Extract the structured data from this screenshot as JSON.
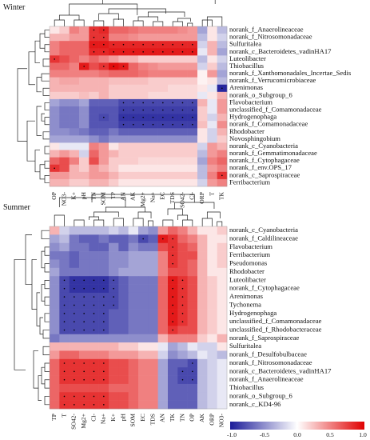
{
  "chart_data": [
    {
      "type": "heatmap",
      "title": "Winter",
      "columns": [
        "OP",
        "NO3-",
        "K+",
        "pH",
        "TN",
        "SOM",
        "TP",
        "AN",
        "AK",
        "Mg2+",
        "Na+",
        "EC",
        "TDS",
        "SO42-",
        "Cl-",
        "ORP",
        "T",
        "TK"
      ],
      "rows": [
        "norank_f_Anaerolineaceae",
        "norank_f_Nitrosomonadaceae",
        "Sulfuritalea",
        "norank_c_Bacteroidetes_vadinHA17",
        "Luteolibacter",
        "Thiobacillus",
        "norank_f_Xanthomonadales_Incertae_Sedis",
        "norank_f_Verrucomicrobiaceae",
        "Arenimonas",
        "norank_o_Subgroup_6",
        "Flavobacterium",
        "unclassified_f_Comamonadaceae",
        "Hydrogenophaga",
        "norank_f_Comamonadaceae",
        "Rhodobacter",
        "Novosphingobium",
        "norank_c_Cyanobacteria",
        "norank_f_Gemmatimonadaceae",
        "norank_f_Cytophagaceae",
        "norank_f_env.OPS_17",
        "norank_c_Saprospiraceae",
        "Ferribacterium"
      ],
      "values": [
        [
          0.1,
          0.2,
          0.5,
          0.4,
          0.8,
          0.85,
          0.6,
          0.6,
          0.55,
          0.5,
          0.5,
          0.5,
          0.5,
          0.45,
          0.4,
          -0.4,
          0.1,
          -0.3
        ],
        [
          0.3,
          0.3,
          0.4,
          0.4,
          0.8,
          0.8,
          0.5,
          0.5,
          0.45,
          0.4,
          0.4,
          0.4,
          0.4,
          0.4,
          0.4,
          -0.3,
          0.1,
          -0.2
        ],
        [
          0.5,
          0.6,
          0.6,
          0.6,
          0.9,
          0.9,
          0.85,
          0.85,
          0.85,
          0.85,
          0.85,
          0.85,
          0.85,
          0.85,
          0.85,
          -0.2,
          0.3,
          -0.3
        ],
        [
          0.5,
          0.6,
          0.6,
          0.6,
          0.85,
          0.85,
          0.9,
          0.9,
          0.9,
          0.9,
          0.9,
          0.9,
          0.9,
          0.9,
          0.9,
          -0.1,
          0.3,
          -0.4
        ],
        [
          0.8,
          0.7,
          0.6,
          0.5,
          0.6,
          0.5,
          0.4,
          0.3,
          0.3,
          0.2,
          0.2,
          0.2,
          0.2,
          0.2,
          0.2,
          -0.3,
          0.1,
          -0.2
        ],
        [
          0.6,
          0.6,
          0.5,
          0.9,
          0.7,
          0.8,
          0.95,
          0.9,
          0.6,
          0.5,
          0.45,
          0.4,
          0.4,
          0.4,
          0.4,
          -0.2,
          0.2,
          -0.3
        ],
        [
          0.5,
          0.5,
          0.5,
          0.5,
          0.5,
          0.55,
          0.6,
          0.6,
          0.6,
          0.55,
          0.5,
          0.5,
          0.5,
          0.5,
          0.5,
          0.05,
          0.4,
          -0.4
        ],
        [
          0.3,
          0.35,
          0.35,
          0.3,
          0.3,
          0.3,
          0.25,
          0.25,
          0.25,
          0.25,
          0.2,
          0.2,
          0.2,
          0.2,
          0.2,
          0.05,
          0.1,
          -0.3
        ],
        [
          0.3,
          0.3,
          0.3,
          0.3,
          0.3,
          0.3,
          0.2,
          0.2,
          0.2,
          0.2,
          0.2,
          0.2,
          0.15,
          0.15,
          0.15,
          0.1,
          -0.1,
          -0.95
        ],
        [
          0.2,
          0.2,
          0.2,
          0.25,
          0.2,
          0.3,
          0.2,
          0.2,
          0.2,
          0.2,
          0.15,
          0.15,
          0.15,
          0.15,
          0.15,
          -0.1,
          0.1,
          0.3
        ],
        [
          -0.4,
          -0.5,
          -0.5,
          -0.4,
          -0.7,
          -0.7,
          -0.7,
          -0.8,
          -0.8,
          -0.8,
          -0.8,
          -0.8,
          -0.8,
          -0.8,
          -0.8,
          0.3,
          -0.1,
          0.4
        ],
        [
          -0.5,
          -0.6,
          -0.6,
          -0.5,
          -0.75,
          -0.75,
          -0.75,
          -0.85,
          -0.85,
          -0.85,
          -0.85,
          -0.85,
          -0.85,
          -0.85,
          -0.85,
          0.2,
          -0.1,
          0.4
        ],
        [
          -0.5,
          -0.6,
          -0.6,
          -0.5,
          -0.75,
          -0.8,
          -0.75,
          -0.9,
          -0.9,
          -0.9,
          -0.9,
          -0.9,
          -0.9,
          -0.9,
          -0.9,
          0.2,
          -0.2,
          0.3
        ],
        [
          -0.5,
          -0.6,
          -0.6,
          -0.5,
          -0.75,
          -0.75,
          -0.75,
          -0.85,
          -0.85,
          -0.85,
          -0.85,
          -0.85,
          -0.85,
          -0.85,
          -0.85,
          0.25,
          -0.1,
          0.45
        ],
        [
          -0.5,
          -0.5,
          -0.55,
          -0.6,
          -0.7,
          -0.7,
          -0.6,
          -0.7,
          -0.7,
          -0.7,
          -0.7,
          -0.7,
          -0.7,
          -0.7,
          -0.7,
          0.1,
          -0.2,
          0.3
        ],
        [
          -0.4,
          -0.4,
          -0.4,
          -0.4,
          -0.5,
          -0.6,
          -0.5,
          -0.5,
          -0.5,
          -0.5,
          -0.5,
          -0.5,
          -0.5,
          -0.5,
          -0.5,
          0.1,
          -0.2,
          0.2
        ],
        [
          0.1,
          -0.1,
          -0.1,
          -0.1,
          0.5,
          0.4,
          0.1,
          0.2,
          0.2,
          0.2,
          0.2,
          0.2,
          0.2,
          0.2,
          0.2,
          -0.2,
          0.4,
          0.3
        ],
        [
          0.3,
          0.4,
          0.3,
          -0.2,
          0.6,
          0.4,
          0.3,
          0.2,
          0.2,
          0.2,
          0.2,
          0.2,
          0.2,
          0.2,
          0.2,
          -0.3,
          0.4,
          0.5
        ],
        [
          0.6,
          0.7,
          0.5,
          0.2,
          0.7,
          0.4,
          0.2,
          0.2,
          0.2,
          0.15,
          0.15,
          0.15,
          0.15,
          0.15,
          0.15,
          -0.4,
          0.5,
          0.6
        ],
        [
          0.8,
          0.7,
          0.3,
          0.2,
          0.4,
          0.3,
          0.2,
          0.1,
          0.1,
          0.1,
          0.1,
          0.1,
          0.1,
          0.1,
          0.1,
          -0.3,
          0.4,
          0.5
        ],
        [
          0.4,
          0.4,
          0.3,
          0.3,
          0.4,
          0.4,
          0.3,
          0.2,
          0.2,
          0.2,
          0.2,
          0.2,
          0.2,
          0.2,
          0.2,
          -0.3,
          0.5,
          0.8
        ],
        [
          0.3,
          0.3,
          0.2,
          0.2,
          0.3,
          0.3,
          0.2,
          0.1,
          0.1,
          0.1,
          0.1,
          0.1,
          0.1,
          0.1,
          0.1,
          -0.2,
          0.4,
          0.5
        ]
      ]
    },
    {
      "type": "heatmap",
      "title": "Summer",
      "columns": [
        "TP",
        "T",
        "SO42-",
        "Mg2+",
        "Cl-",
        "Na+",
        "K+",
        "pH",
        "SOM",
        "EC",
        "TDS",
        "AN",
        "TK",
        "TN",
        "OP",
        "AK",
        "ORP",
        "NO3-"
      ],
      "rows": [
        "norank_c_Cyanobacteria",
        "norank_f_Caldilineaceae",
        "Flavobacterium",
        "Ferribacterium",
        "Pseudomonas",
        "Rhodobacter",
        "Luteolibacter",
        "norank_f_Cytophagaceae",
        "Arenimonas",
        "Tychonema",
        "Hydrogenophaga",
        "unclassified_f_Comamonadaceae",
        "unclassified_f_Rhodobacteraceae",
        "norank_f_Saprospiraceae",
        "Sulfuritalea",
        "norank_f_Desulfobulbaceae",
        "norank_f_Nitrosomonadaceae",
        "norank_c_Bacteroidetes_vadinHA17",
        "norank_f_Anaerolineaceae",
        "Thiobacillus",
        "norank_o_Subgroup_6",
        "norank_c_KD4-96"
      ],
      "values": [
        [
          0.3,
          -0.2,
          -0.3,
          -0.3,
          -0.3,
          -0.3,
          -0.2,
          -0.3,
          -0.1,
          -0.4,
          -0.5,
          0.4,
          0.6,
          0.5,
          0.3,
          0.1,
          0.1,
          0.2
        ],
        [
          -0.4,
          -0.3,
          -0.6,
          -0.7,
          -0.7,
          -0.6,
          -0.7,
          -0.7,
          -0.6,
          -0.8,
          -0.7,
          0.9,
          0.8,
          0.6,
          0.5,
          0.3,
          0.1,
          0.1
        ],
        [
          -0.5,
          -0.4,
          -0.6,
          -0.6,
          -0.7,
          -0.7,
          -0.5,
          -0.7,
          -0.5,
          -0.6,
          -0.6,
          0.7,
          0.8,
          0.7,
          0.6,
          0.3,
          0.1,
          0.2
        ],
        [
          -0.6,
          -0.6,
          -0.7,
          -0.6,
          -0.6,
          -0.6,
          -0.5,
          -0.5,
          -0.4,
          -0.4,
          -0.4,
          0.5,
          0.8,
          0.7,
          0.7,
          0.3,
          0.1,
          0.2
        ],
        [
          -0.5,
          -0.6,
          -0.7,
          -0.6,
          -0.6,
          -0.6,
          -0.5,
          -0.5,
          -0.4,
          -0.4,
          -0.4,
          0.5,
          0.8,
          0.7,
          0.6,
          0.3,
          0.1,
          0.2
        ],
        [
          -0.4,
          -0.6,
          -0.6,
          -0.6,
          -0.6,
          -0.6,
          -0.5,
          -0.4,
          -0.4,
          -0.4,
          -0.4,
          0.5,
          0.7,
          0.7,
          0.6,
          0.3,
          0.1,
          0.1
        ],
        [
          -0.5,
          -0.8,
          -0.9,
          -0.9,
          -0.9,
          -0.9,
          -0.8,
          -0.7,
          -0.6,
          -0.6,
          -0.6,
          0.6,
          0.9,
          0.8,
          0.7,
          0.3,
          0.2,
          0.1
        ],
        [
          -0.5,
          -0.8,
          -0.9,
          -0.9,
          -0.9,
          -0.9,
          -0.8,
          -0.7,
          -0.6,
          -0.6,
          -0.6,
          0.6,
          0.9,
          0.8,
          0.7,
          0.3,
          0.2,
          0.1
        ],
        [
          -0.5,
          -0.8,
          -0.8,
          -0.8,
          -0.8,
          -0.8,
          -0.8,
          -0.7,
          -0.6,
          -0.6,
          -0.6,
          0.6,
          0.9,
          0.8,
          0.7,
          0.3,
          0.2,
          0.1
        ],
        [
          -0.5,
          -0.8,
          -0.8,
          -0.8,
          -0.8,
          -0.8,
          -0.8,
          -0.7,
          -0.6,
          -0.6,
          -0.6,
          0.6,
          0.9,
          0.8,
          0.7,
          0.3,
          0.2,
          0.1
        ],
        [
          -0.5,
          -0.8,
          -0.8,
          -0.8,
          -0.8,
          -0.8,
          -0.7,
          -0.7,
          -0.6,
          -0.6,
          -0.6,
          0.6,
          0.9,
          0.8,
          0.7,
          0.3,
          0.2,
          0.1
        ],
        [
          -0.5,
          -0.8,
          -0.8,
          -0.8,
          -0.8,
          -0.8,
          -0.7,
          -0.7,
          -0.6,
          -0.6,
          -0.6,
          0.6,
          0.9,
          0.8,
          0.7,
          0.3,
          0.2,
          0.1
        ],
        [
          -0.5,
          -0.8,
          -0.8,
          -0.8,
          -0.8,
          -0.8,
          -0.7,
          -0.7,
          -0.6,
          -0.6,
          -0.6,
          0.6,
          0.8,
          0.7,
          0.7,
          0.3,
          0.2,
          0.1
        ],
        [
          -0.6,
          -0.5,
          -0.5,
          -0.5,
          -0.5,
          -0.5,
          -0.5,
          -0.5,
          -0.5,
          -0.5,
          -0.5,
          0.3,
          0.5,
          0.5,
          0.5,
          0.2,
          0.1,
          0.3
        ],
        [
          0.3,
          0.3,
          0.3,
          0.3,
          0.3,
          0.3,
          0.3,
          0.2,
          0.2,
          0.1,
          0.1,
          -0.1,
          -0.4,
          -0.3,
          -0.1,
          -0.2,
          -0.2,
          0.1
        ],
        [
          0.4,
          0.6,
          0.6,
          0.5,
          0.5,
          0.5,
          0.4,
          0.4,
          0.4,
          0.3,
          0.3,
          -0.2,
          -0.5,
          -0.4,
          -0.3,
          -0.1,
          -0.2,
          -0.3
        ],
        [
          0.6,
          0.8,
          0.8,
          0.8,
          0.8,
          0.8,
          0.7,
          0.7,
          0.6,
          0.5,
          0.5,
          -0.4,
          -0.7,
          -0.7,
          -0.8,
          -0.3,
          -0.2,
          -0.1
        ],
        [
          0.6,
          0.8,
          0.8,
          0.8,
          0.8,
          0.8,
          0.7,
          0.7,
          0.6,
          0.5,
          0.5,
          -0.4,
          -0.7,
          -0.8,
          -0.8,
          -0.3,
          -0.2,
          -0.1
        ],
        [
          0.6,
          0.8,
          0.8,
          0.8,
          0.8,
          0.8,
          0.7,
          0.7,
          0.6,
          0.5,
          0.5,
          -0.4,
          -0.7,
          -0.8,
          -0.8,
          -0.3,
          -0.2,
          -0.1
        ],
        [
          0.6,
          0.7,
          0.7,
          0.7,
          0.7,
          0.7,
          0.6,
          0.6,
          0.6,
          0.5,
          0.5,
          -0.4,
          -0.7,
          -0.7,
          -0.7,
          -0.3,
          -0.2,
          -0.1
        ],
        [
          0.6,
          0.8,
          0.8,
          0.8,
          0.8,
          0.8,
          0.7,
          0.7,
          0.6,
          0.5,
          0.5,
          -0.4,
          -0.7,
          -0.7,
          -0.7,
          -0.3,
          -0.2,
          -0.1
        ],
        [
          0.6,
          0.8,
          0.8,
          0.8,
          0.8,
          0.8,
          0.7,
          0.7,
          0.6,
          0.5,
          0.5,
          -0.4,
          -0.7,
          -0.7,
          -0.7,
          -0.3,
          -0.2,
          -0.1
        ]
      ]
    }
  ],
  "legend": {
    "ticks": [
      "-1.0",
      "-0.5",
      "0.0",
      "0.5",
      "1.0"
    ],
    "color_low": "#1c1c99",
    "color_mid": "#ffffff",
    "color_high": "#e00000"
  }
}
